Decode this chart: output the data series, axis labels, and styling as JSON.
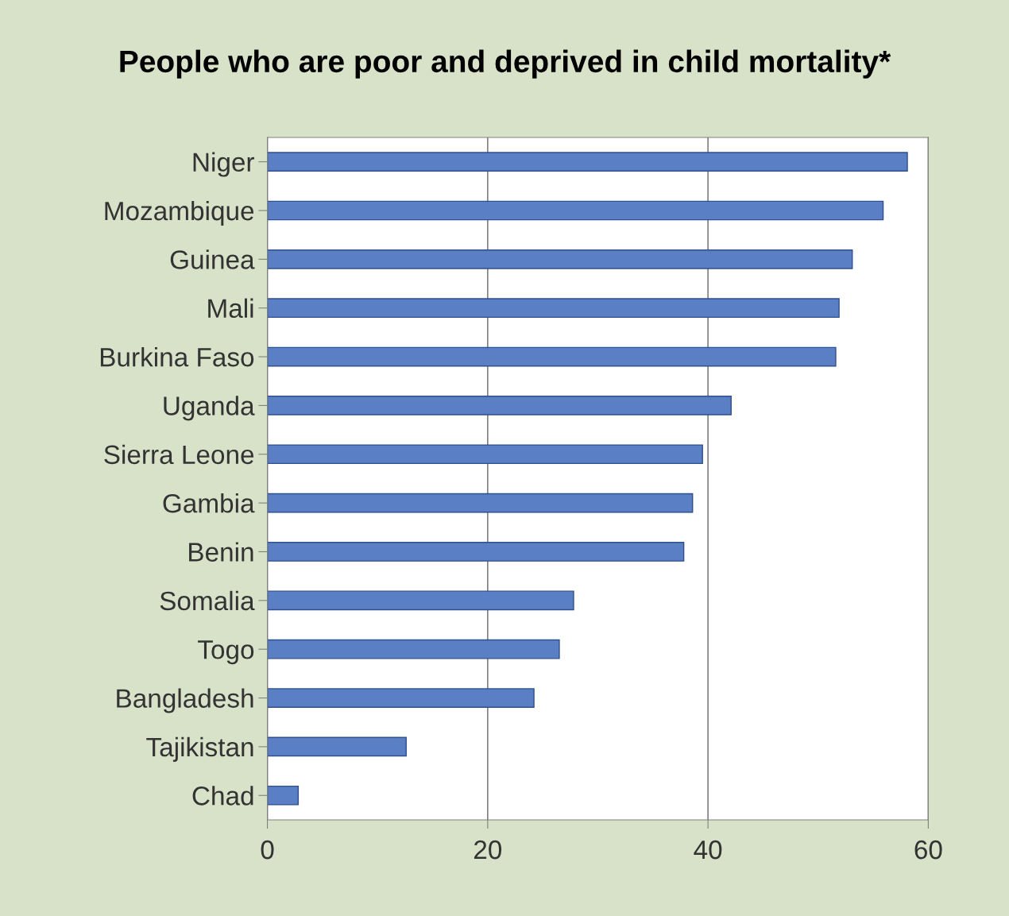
{
  "chart_data": {
    "type": "bar",
    "orientation": "horizontal",
    "title": "People who are poor and deprived in child mortality*",
    "categories": [
      "Niger",
      "Mozambique",
      "Guinea",
      "Mali",
      "Burkina Faso",
      "Uganda",
      "Sierra Leone",
      "Gambia",
      "Benin",
      "Somalia",
      "Togo",
      "Bangladesh",
      "Tajikistan",
      "Chad"
    ],
    "values": [
      58.1,
      55.9,
      53.1,
      51.9,
      51.6,
      42.1,
      39.5,
      38.6,
      37.8,
      27.8,
      26.5,
      24.2,
      12.6,
      2.8
    ],
    "color": "#5a7fc4",
    "xlim": [
      0,
      60
    ],
    "xticks": [
      0,
      20,
      40,
      60
    ],
    "grid": "x",
    "legend": false
  }
}
